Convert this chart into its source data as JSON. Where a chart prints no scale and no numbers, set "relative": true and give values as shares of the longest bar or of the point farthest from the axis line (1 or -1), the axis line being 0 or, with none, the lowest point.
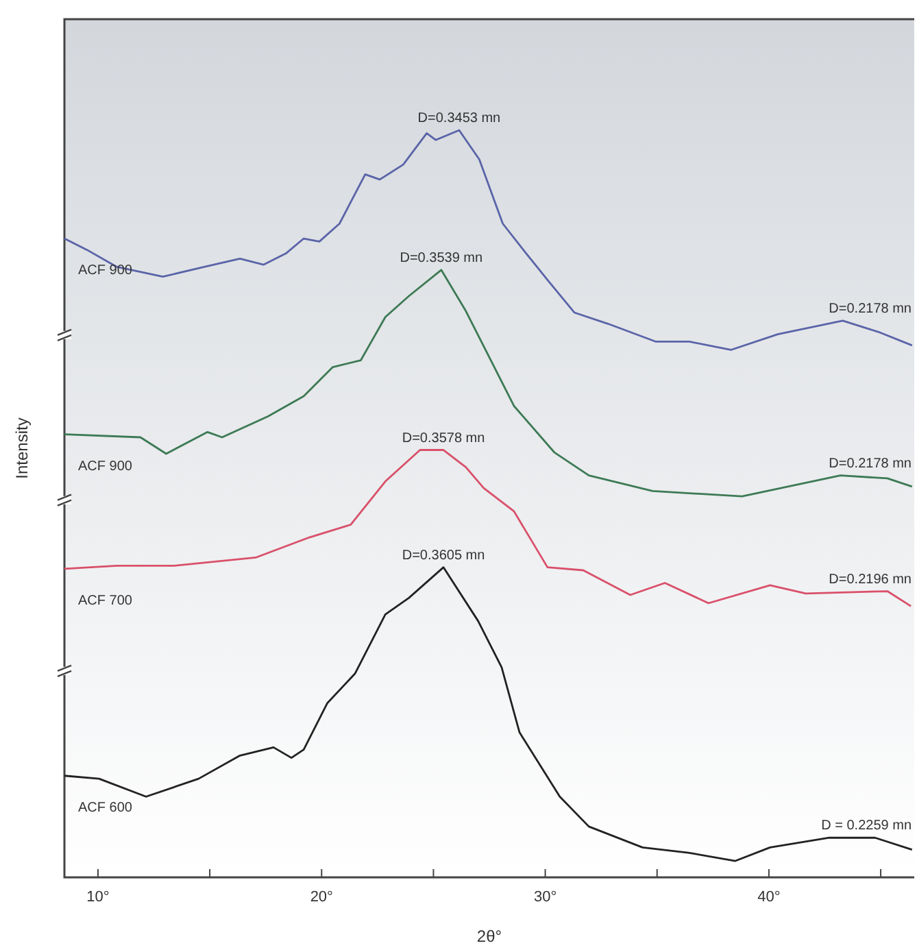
{
  "chart_data": {
    "type": "line",
    "relative": true,
    "xlabel": "2θ°",
    "ylabel": "Intensity",
    "xlim": [
      8.5,
      46.5
    ],
    "xticks": [
      {
        "value": 10,
        "label": "10°"
      },
      {
        "value": 15,
        "label": null
      },
      {
        "value": 20,
        "label": "20°"
      },
      {
        "value": 25,
        "label": null
      },
      {
        "value": 30,
        "label": "30°"
      },
      {
        "value": 35,
        "label": null
      },
      {
        "value": 40,
        "label": "40°"
      },
      {
        "value": 45,
        "label": null
      }
    ],
    "marker": "none",
    "line_style": "solid",
    "series": [
      {
        "name": "ACF 900",
        "color": "#5a64a8",
        "x": [
          8.5,
          9.5,
          10.85,
          12.9,
          14.75,
          16.35,
          17.4,
          18.4,
          19.2,
          19.9,
          20.8,
          21.95,
          22.6,
          23.65,
          24.7,
          25.1,
          26.15,
          27.05,
          28.1,
          29.15,
          30.2,
          31.3,
          32.8,
          34.95,
          36.45,
          38.3,
          40.4,
          43.3,
          44.9,
          46.4
        ],
        "values": [
          0.855,
          0.84,
          0.817,
          0.804,
          0.817,
          0.828,
          0.82,
          0.835,
          0.855,
          0.851,
          0.875,
          0.941,
          0.934,
          0.954,
          0.996,
          0.987,
          1,
          0.961,
          0.875,
          0.835,
          0.796,
          0.756,
          0.741,
          0.717,
          0.717,
          0.706,
          0.727,
          0.745,
          0.73,
          0.712
        ]
      },
      {
        "name": "ACF 900",
        "color": "#3d7a55",
        "x": [
          8.5,
          11.9,
          13.05,
          14.9,
          15.55,
          17.6,
          19.2,
          20.5,
          21.75,
          22.85,
          23.9,
          25.35,
          26.45,
          28.6,
          30.4,
          31.95,
          34.8,
          38.8,
          43.2,
          45.3,
          46.4
        ],
        "values": [
          0.593,
          0.589,
          0.567,
          0.596,
          0.589,
          0.617,
          0.644,
          0.683,
          0.692,
          0.75,
          0.778,
          0.813,
          0.758,
          0.631,
          0.569,
          0.538,
          0.517,
          0.51,
          0.538,
          0.534,
          0.523
        ]
      },
      {
        "name": "ACF 700",
        "color": "#d9506a",
        "x": [
          8.5,
          10.85,
          13.4,
          17.05,
          19.45,
          21.3,
          22.85,
          24.4,
          25.45,
          26.45,
          27.25,
          28.6,
          30.1,
          31.7,
          33.8,
          35.35,
          37.3,
          40.05,
          41.65,
          45.3,
          46.35
        ],
        "values": [
          0.413,
          0.417,
          0.417,
          0.428,
          0.455,
          0.472,
          0.53,
          0.572,
          0.572,
          0.549,
          0.521,
          0.49,
          0.415,
          0.411,
          0.378,
          0.394,
          0.367,
          0.391,
          0.38,
          0.383,
          0.363
        ]
      },
      {
        "name": "ACF 600",
        "color": "#222222",
        "x": [
          8.5,
          10.05,
          12.15,
          14.5,
          16.35,
          17.85,
          18.65,
          19.2,
          20.25,
          21.5,
          22.85,
          23.9,
          25.45,
          27,
          28.05,
          28.85,
          30.65,
          31.95,
          34.35,
          36.4,
          38.5,
          40.05,
          42.7,
          44.75,
          46.4
        ],
        "values": [
          0.136,
          0.132,
          0.108,
          0.132,
          0.163,
          0.174,
          0.16,
          0.171,
          0.233,
          0.273,
          0.352,
          0.374,
          0.415,
          0.343,
          0.281,
          0.194,
          0.108,
          0.068,
          0.04,
          0.033,
          0.022,
          0.04,
          0.053,
          0.053,
          0.037
        ]
      }
    ],
    "annotations": [
      {
        "text": "D=0.3453 mn",
        "x": 26.15,
        "y": 1
      },
      {
        "text": "D=0.3539 mn",
        "x": 25.35,
        "y": 0.813
      },
      {
        "text": "D=0.3578 mn",
        "x": 25.45,
        "y": 0.572
      },
      {
        "text": "D=0.3605 mn",
        "x": 25.45,
        "y": 0.415
      },
      {
        "text": "D=0.2178 mn",
        "x": 43.3,
        "y": 0.745
      },
      {
        "text": "D=0.2178 mn",
        "x": 43.2,
        "y": 0.538
      },
      {
        "text": "D=0.2196 mn",
        "x": 43.3,
        "y": 0.383
      },
      {
        "text": "D = 0.2259 mn",
        "x": 43.3,
        "y": 0.053
      }
    ]
  }
}
